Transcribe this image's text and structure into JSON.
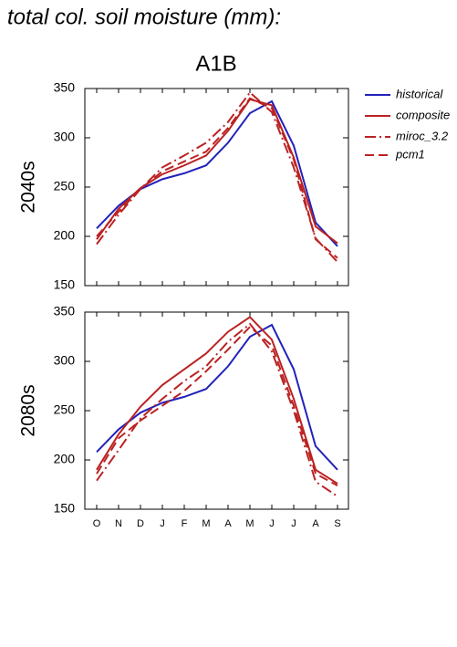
{
  "title": "total col. soil moisture (mm):",
  "subtitle": "A1B",
  "chart_data": [
    {
      "type": "line",
      "ylabel": "2040s",
      "ylim": [
        150,
        350
      ],
      "yticks": [
        150,
        200,
        250,
        300,
        350
      ],
      "legend": "outside-right",
      "series": [
        {
          "name": "historical",
          "color": "#2222bb",
          "linestyle": "solid",
          "values": [
            208,
            231,
            248,
            258,
            264,
            272,
            295,
            325,
            337,
            292,
            214,
            190
          ]
        },
        {
          "name": "composite",
          "color": "#bb2222",
          "linestyle": "solid",
          "values": [
            197,
            228,
            249,
            263,
            272,
            282,
            307,
            339,
            333,
            280,
            210,
            193
          ]
        },
        {
          "name": "miroc_3.2",
          "color": "#bb2222",
          "linestyle": "dashdot",
          "values": [
            192,
            222,
            248,
            270,
            282,
            295,
            316,
            346,
            326,
            270,
            198,
            174
          ]
        },
        {
          "name": "pcm1",
          "color": "#bb2222",
          "linestyle": "dash",
          "values": [
            200,
            225,
            248,
            266,
            276,
            286,
            310,
            340,
            330,
            278,
            197,
            178
          ]
        }
      ]
    },
    {
      "type": "line",
      "ylabel": "2080s",
      "ylim": [
        150,
        350
      ],
      "yticks": [
        150,
        200,
        250,
        300,
        350
      ],
      "categories": [
        "O",
        "N",
        "D",
        "J",
        "F",
        "M",
        "A",
        "M",
        "J",
        "J",
        "A",
        "S"
      ],
      "series": [
        {
          "color": "#2222bb",
          "linestyle": "solid",
          "values": [
            208,
            231,
            248,
            258,
            264,
            272,
            295,
            325,
            337,
            292,
            214,
            190
          ]
        },
        {
          "color": "#bb2222",
          "linestyle": "solid",
          "values": [
            190,
            226,
            254,
            276,
            292,
            308,
            330,
            345,
            322,
            262,
            190,
            176
          ]
        },
        {
          "color": "#bb2222",
          "linestyle": "dashdot",
          "values": [
            179,
            210,
            242,
            262,
            280,
            295,
            320,
            338,
            310,
            250,
            178,
            163
          ]
        },
        {
          "color": "#bb2222",
          "linestyle": "dash",
          "values": [
            186,
            222,
            240,
            255,
            270,
            290,
            312,
            335,
            316,
            255,
            186,
            174
          ]
        }
      ]
    }
  ]
}
